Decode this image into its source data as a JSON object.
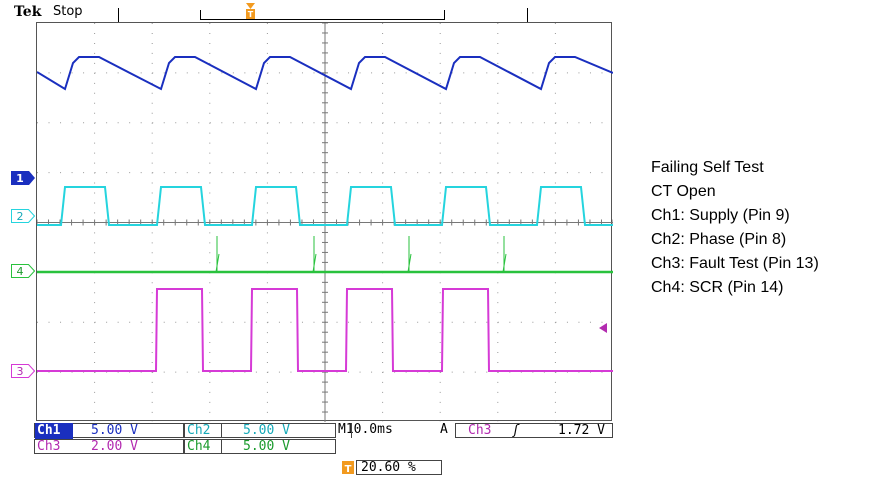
{
  "header": {
    "brand": "Tek",
    "status": "Stop"
  },
  "markers": {
    "ch1": "1",
    "ch2": "2",
    "ch4": "4",
    "ch3": "3",
    "trigger_top": "T"
  },
  "readouts": {
    "row1": [
      {
        "ch": "Ch1",
        "value": "5.00 V",
        "color": "#1a2fbf"
      },
      {
        "ch": "Ch2",
        "value": "5.00 V",
        "color": "#16a9b8"
      }
    ],
    "row2": [
      {
        "ch": "Ch3",
        "value": "2.00 V",
        "color": "#b32bb0"
      },
      {
        "ch": "Ch4",
        "value": "5.00 V",
        "color": "#1c9b2e"
      }
    ],
    "timebase": "M10.0ms",
    "trigger_mode": "A",
    "trigger_source": "Ch3",
    "trigger_slope": "ʃ",
    "trigger_level": "1.72 V",
    "trigger_position": "20.60 %"
  },
  "legend": [
    "Failing Self Test",
    "CT Open",
    "Ch1: Supply (Pin 9)",
    "Ch2: Phase (Pin 8)",
    "Ch3: Fault Test (Pin 13)",
    "Ch4: SCR (Pin 14)"
  ],
  "colors": {
    "ch1": "#1a2fbf",
    "ch2": "#25d4de",
    "ch3": "#d63ad6",
    "ch4": "#29c23d",
    "trigger": "#f29a1f"
  }
}
